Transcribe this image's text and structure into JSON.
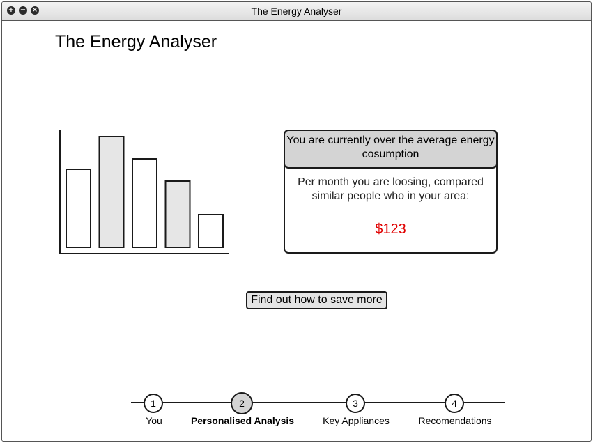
{
  "window": {
    "title": "The Energy Analyser",
    "controls": [
      "+",
      "−",
      "×"
    ]
  },
  "page": {
    "title": "The Energy Analyser"
  },
  "chart_data": {
    "type": "bar",
    "categories": [
      "",
      "",
      "",
      "",
      ""
    ],
    "values": [
      112,
      159,
      127,
      95,
      47
    ],
    "fills": [
      "#ffffff",
      "#e6e6e6",
      "#ffffff",
      "#e6e6e6",
      "#ffffff"
    ],
    "ylim": [
      0,
      176
    ],
    "grid": false
  },
  "infobox": {
    "heading": "You are currently over the average energy cosumption",
    "text": "Per month you are loosing, compared similar people who in your area:",
    "amount": "$123",
    "amount_color": "#e00000"
  },
  "actions": {
    "save_label": "Find out how to save more"
  },
  "steps": [
    {
      "number": "1",
      "label": "You",
      "active": false
    },
    {
      "number": "2",
      "label": "Personalised Analysis",
      "active": true
    },
    {
      "number": "3",
      "label": "Key Appliances",
      "active": false
    },
    {
      "number": "4",
      "label": "Recomendations",
      "active": false
    }
  ]
}
